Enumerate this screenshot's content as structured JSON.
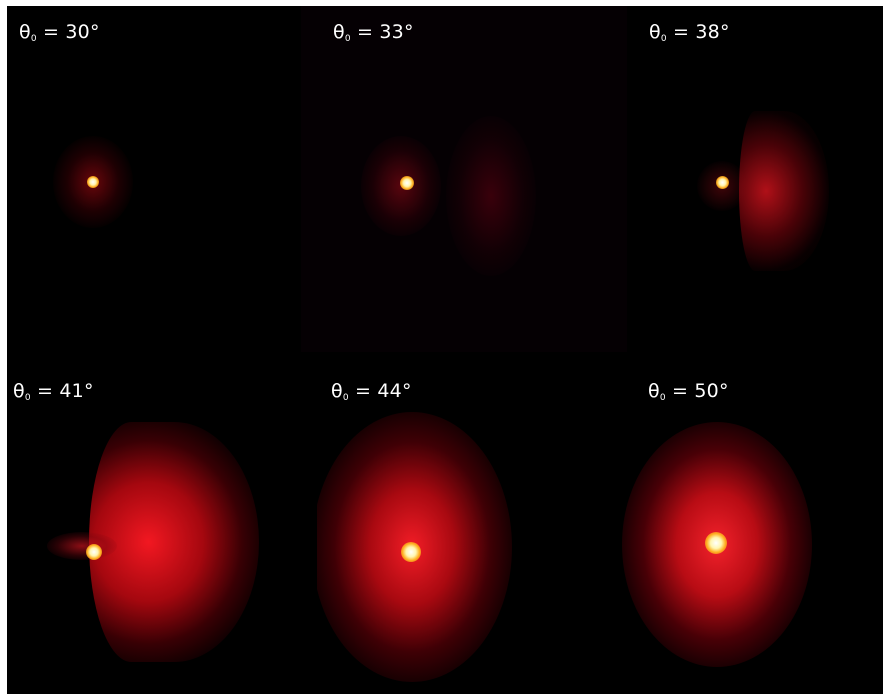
{
  "panels": [
    {
      "theta_label": "θ",
      "sub": "0",
      "value": " = 30°",
      "spot_color": "#ffffff",
      "glow_color": "#ff2020"
    },
    {
      "theta_label": "θ",
      "sub": "0",
      "value": " = 33°",
      "spot_color": "#ffffff",
      "glow_color": "#ff2020"
    },
    {
      "theta_label": "θ",
      "sub": "0",
      "value": " = 38°",
      "spot_color": "#ffffff",
      "glow_color": "#ff2020"
    },
    {
      "theta_label": "θ",
      "sub": "0",
      "value": " = 41°",
      "spot_color": "#ffffff",
      "glow_color": "#ff2020"
    },
    {
      "theta_label": "θ",
      "sub": "0",
      "value": " = 44°",
      "spot_color": "#ffffff",
      "glow_color": "#ff2020"
    },
    {
      "theta_label": "θ",
      "sub": "0",
      "value": " = 50°",
      "spot_color": "#ffffff",
      "glow_color": "#ff2020"
    }
  ]
}
